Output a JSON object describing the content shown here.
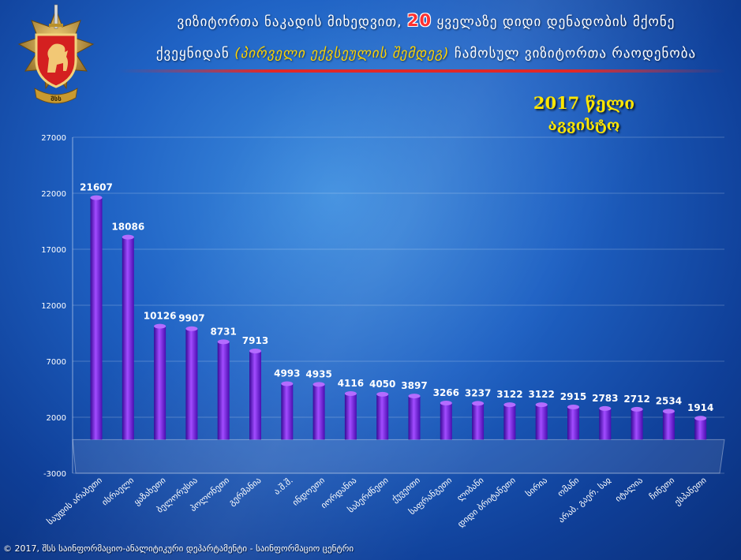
{
  "header": {
    "title_part1": "ვიზიტორთა ნაკადის მიხედვით, ",
    "title_number": "20",
    "title_part2": " ყველაზე დიდი დენადობის მქონე",
    "title_line2_part1": "ქვეყნიდან ",
    "title_line2_highlight": "(პირველი ექვსეულის შემდეგ)",
    "title_line2_part2": " ჩამოსულ ვიზიტორთა რაოდენობა"
  },
  "period": {
    "year": "2017 წელი",
    "month": "აგვისტო"
  },
  "footer": {
    "text": "© 2017, შსს საინფორმაციო-ანალიტიკური დეპარტამენტი - საინფორმაციო ცენტრი"
  },
  "logo": {
    "icon": "police-emblem-icon",
    "text": "შსს"
  },
  "colors": {
    "bar_light": "#a24cff",
    "bar_dark": "#4a0db0",
    "title_highlight_number": "#ff3030",
    "title_highlight_text": "#ffd400",
    "period_text": "#ffe600"
  },
  "chart_data": {
    "type": "bar",
    "categories": [
      "საუდის არაბეთი",
      "ისრაელი",
      "ყაზახეთი",
      "ბელორუსია",
      "პოლონეთი",
      "გერმანია",
      "ა.შ.შ.",
      "ინდოეთი",
      "იორდანია",
      "საბერძნეთი",
      "ქუვეითი",
      "საფრანგეთი",
      "ლიბანი",
      "დიდი ბრიტანეთი",
      "სირია",
      "ომანი",
      "არაბ. გაერ. საჲ",
      "იტალია",
      "ჩინეთი",
      "ესპანეთი"
    ],
    "values": [
      21607,
      18086,
      10126,
      9907,
      8731,
      7913,
      4993,
      4935,
      4116,
      4050,
      3897,
      3266,
      3237,
      3122,
      3122,
      2915,
      2783,
      2712,
      2534,
      1914
    ],
    "y_ticks": [
      -3000,
      2000,
      7000,
      12000,
      17000,
      22000,
      27000
    ],
    "ylim": [
      -3000,
      27000
    ],
    "bar_base": 0,
    "title": "",
    "xlabel": "",
    "ylabel": ""
  }
}
